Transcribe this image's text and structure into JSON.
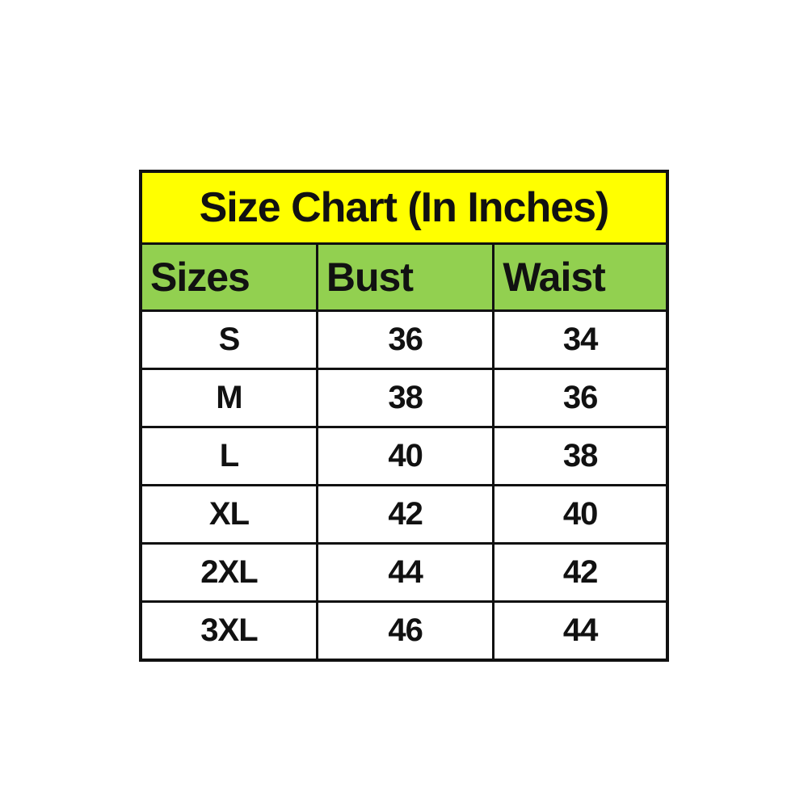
{
  "chart_data": {
    "type": "table",
    "title": "Size Chart (In Inches)",
    "columns": [
      "Sizes",
      "Bust",
      "Waist"
    ],
    "rows": [
      [
        "S",
        "36",
        "34"
      ],
      [
        "M",
        "38",
        "36"
      ],
      [
        "L",
        "40",
        "38"
      ],
      [
        "XL",
        "42",
        "40"
      ],
      [
        "2XL",
        "44",
        "42"
      ],
      [
        "3XL",
        "46",
        "44"
      ]
    ],
    "colors": {
      "title_bg": "#ffff00",
      "header_bg": "#92d050",
      "border": "#111111",
      "text": "#111111",
      "row_bg": "#ffffff"
    }
  }
}
